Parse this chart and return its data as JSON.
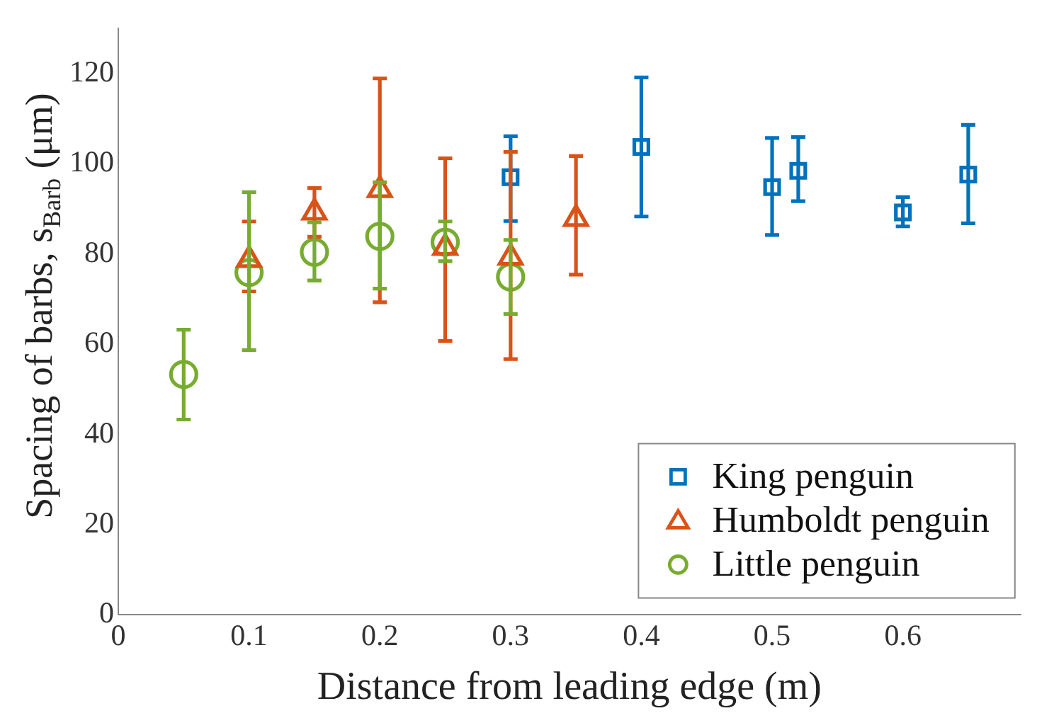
{
  "chart_data": {
    "type": "scatter",
    "xlabel": "Distance from leading edge (m)",
    "ylabel": "Spacing of barbs, s$_{Barb}$ (μm)",
    "xlim": [
      0,
      0.69
    ],
    "xticks": [
      0,
      0.1,
      0.2,
      0.3,
      0.4,
      0.5,
      0.6
    ],
    "ylim": [
      0,
      130
    ],
    "yticks": [
      0,
      20,
      40,
      60,
      80,
      100,
      120
    ],
    "grid": false,
    "legend": "bottom right",
    "series": [
      {
        "name": "King penguin",
        "color": "#0072bd",
        "marker": "square",
        "x": [
          0.3,
          0.4,
          0.5,
          0.52,
          0.6,
          0.65
        ],
        "values": [
          97,
          103.7,
          94.8,
          98.4,
          89.2,
          97.6
        ],
        "errors": [
          [
            87.3,
            106.1
          ],
          [
            88.3,
            119.1
          ],
          [
            84.2,
            105.7
          ],
          [
            91.7,
            105.9
          ],
          [
            86.1,
            92.6
          ],
          [
            86.8,
            108.6
          ]
        ]
      },
      {
        "name": "Humboldt penguin",
        "color": "#d95319",
        "marker": "triangle",
        "x": [
          0.1,
          0.15,
          0.2,
          0.25,
          0.3,
          0.35
        ],
        "values": [
          78.7,
          89.2,
          94.2,
          81.4,
          79.2,
          87.8
        ],
        "errors": [
          [
            71.7,
            87.2
          ],
          [
            83.8,
            94.6
          ],
          [
            69.3,
            118.9
          ],
          [
            60.7,
            101.2
          ],
          [
            56.7,
            102.6
          ],
          [
            75.4,
            101.7
          ]
        ]
      },
      {
        "name": "Little penguin",
        "color": "#77ac30",
        "marker": "circle",
        "x": [
          0.05,
          0.1,
          0.15,
          0.2,
          0.25,
          0.3
        ],
        "values": [
          53.3,
          75.9,
          80.4,
          83.9,
          82.6,
          74.9
        ],
        "errors": [
          [
            43.3,
            63.2
          ],
          [
            58.7,
            93.7
          ],
          [
            74.1,
            87
          ],
          [
            72.3,
            95.9
          ],
          [
            78.4,
            87.2
          ],
          [
            66.7,
            83.1
          ]
        ]
      }
    ]
  }
}
